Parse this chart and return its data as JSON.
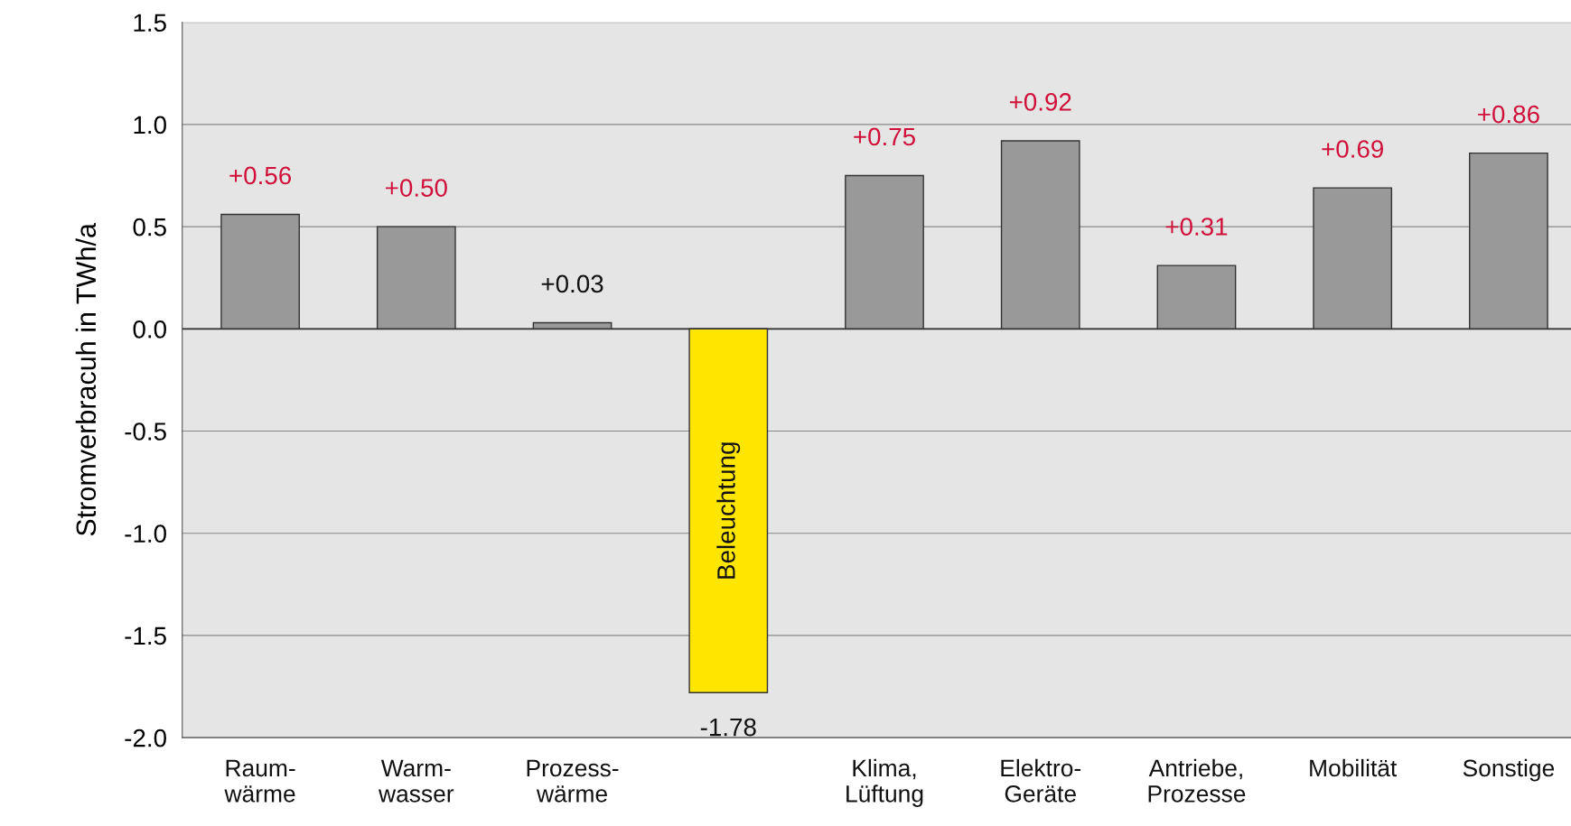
{
  "chart_data": {
    "type": "bar",
    "ylabel": "Stromverbracuh in TWh/a",
    "categories": [
      "Raum-\nwärme",
      "Warm-\nwasser",
      "Prozess-\nwärme",
      "Beleuchtung",
      "Klima,\nLüftung",
      "Elektro-\nGeräte",
      "Antriebe,\nProzesse",
      "Mobilität",
      "Sonstige"
    ],
    "values": [
      0.56,
      0.5,
      0.03,
      -1.78,
      0.75,
      0.92,
      0.31,
      0.69,
      0.86
    ],
    "colors": [
      "#999999",
      "#999999",
      "#999999",
      "#ffe600",
      "#999999",
      "#999999",
      "#999999",
      "#999999",
      "#999999"
    ],
    "value_labels": [
      "+0.56",
      "+0.50",
      "+0.03",
      "-1.78",
      "+0.75",
      "+0.92",
      "+0.31",
      "+0.69",
      "+0.86"
    ],
    "ylim": [
      -2.0,
      1.5
    ],
    "yticks": [
      {
        "value": -2.0,
        "label": "-2.0"
      },
      {
        "value": -1.5,
        "label": "-1.5"
      },
      {
        "value": -1.0,
        "label": "-1.0"
      },
      {
        "value": -0.5,
        "label": "-0.5"
      },
      {
        "value": 0.0,
        "label": "0.0"
      },
      {
        "value": 0.5,
        "label": "0.5"
      },
      {
        "value": 1.0,
        "label": "1.0"
      },
      {
        "value": 1.5,
        "label": "1.5"
      }
    ],
    "grid": "y"
  }
}
